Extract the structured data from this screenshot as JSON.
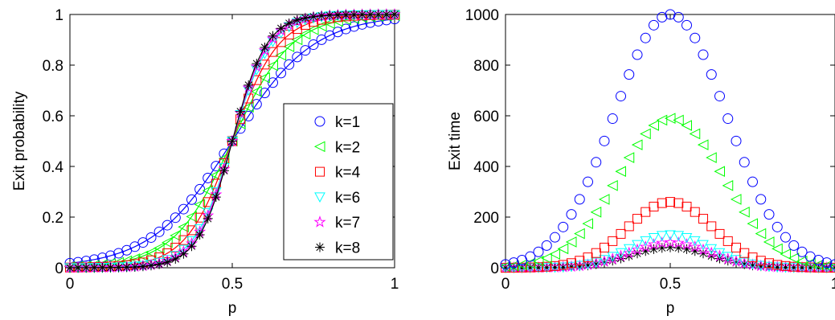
{
  "chart_data": [
    {
      "type": "scatter",
      "title": "",
      "xlabel": "p",
      "ylabel": "Exit probability",
      "xlim": [
        0,
        1
      ],
      "ylim": [
        0,
        1
      ],
      "xticks": [
        "0",
        "0.5",
        "1"
      ],
      "yticks": [
        "0",
        "0.2",
        "0.4",
        "0.6",
        "0.8",
        "1"
      ],
      "grid": false,
      "legend_position": "lower-right",
      "series": [
        {
          "name": "k=1",
          "color": "#0000ff",
          "marker": "circle",
          "steepness": 8.0
        },
        {
          "name": "k=2",
          "color": "#00ff00",
          "marker": "triangle-left",
          "steepness": 11.0
        },
        {
          "name": "k=4",
          "color": "#ff0000",
          "marker": "square",
          "steepness": 14.0
        },
        {
          "name": "k=6",
          "color": "#00ffff",
          "marker": "triangle-down",
          "steepness": 17.0
        },
        {
          "name": "k=7",
          "color": "#ff00ff",
          "marker": "pentagram",
          "steepness": 18.0
        },
        {
          "name": "k=8",
          "color": "#000000",
          "marker": "asterisk",
          "steepness": 19.0
        }
      ]
    },
    {
      "type": "scatter",
      "title": "",
      "xlabel": "p",
      "ylabel": "Exit time",
      "xlim": [
        0,
        1
      ],
      "ylim": [
        0,
        1000
      ],
      "xticks": [
        "0",
        "0.5",
        "1"
      ],
      "yticks": [
        "0",
        "200",
        "400",
        "600",
        "800",
        "1000"
      ],
      "grid": false,
      "series": [
        {
          "name": "k=1",
          "color": "#0000ff",
          "marker": "circle",
          "peak": 1000,
          "width": 0.17
        },
        {
          "name": "k=2",
          "color": "#00ff00",
          "marker": "triangle-left",
          "peak": 590,
          "width": 0.16
        },
        {
          "name": "k=4",
          "color": "#ff0000",
          "marker": "square",
          "peak": 260,
          "width": 0.13
        },
        {
          "name": "k=6",
          "color": "#00ffff",
          "marker": "triangle-down",
          "peak": 130,
          "width": 0.12
        },
        {
          "name": "k=7",
          "color": "#ff00ff",
          "marker": "pentagram",
          "peak": 100,
          "width": 0.12
        },
        {
          "name": "k=8",
          "color": "#000000",
          "marker": "asterisk",
          "peak": 80,
          "width": 0.12
        }
      ]
    }
  ]
}
